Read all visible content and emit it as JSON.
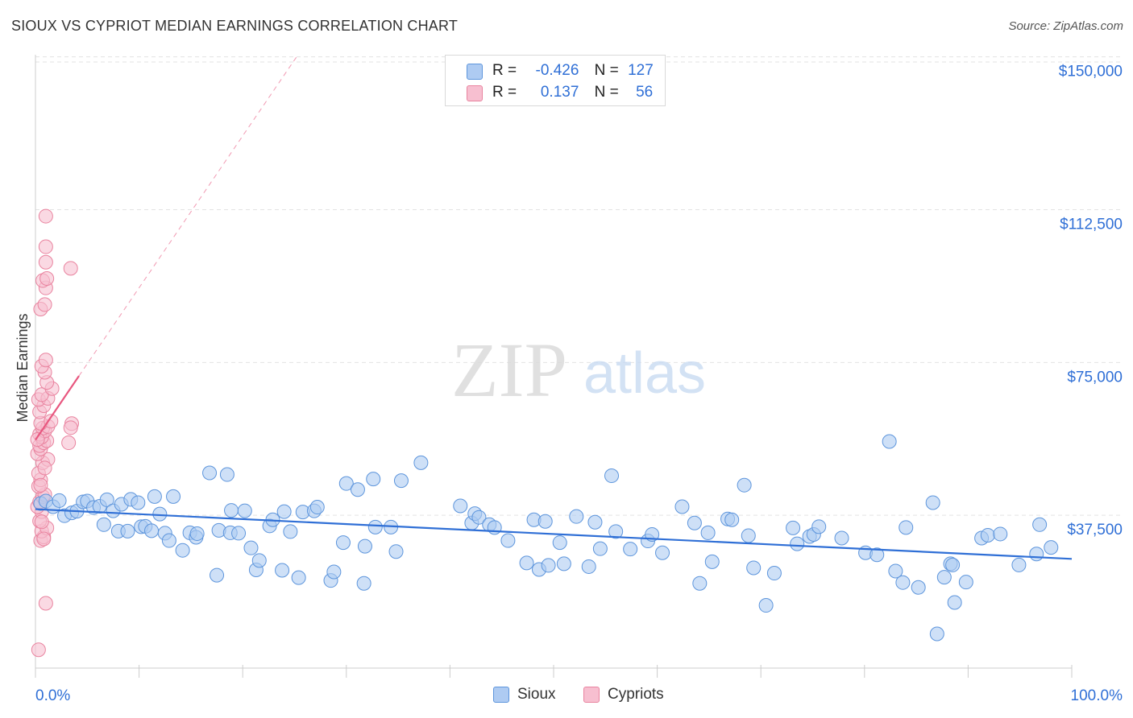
{
  "header": {
    "title": "SIOUX VS CYPRIOT MEDIAN EARNINGS CORRELATION CHART",
    "source": "Source: ZipAtlas.com"
  },
  "legend": {
    "rows": [
      {
        "r_label": "R =",
        "r_value": "-0.426",
        "n_label": "N =",
        "n_value": "127"
      },
      {
        "r_label": "R =",
        "r_value": "0.137",
        "n_label": "N =",
        "n_value": "56"
      }
    ]
  },
  "bottom_legend": [
    "Sioux",
    "Cypriots"
  ],
  "watermark": {
    "zip": "ZIP",
    "atlas": "atlas"
  },
  "colors": {
    "sioux_fill": "#aecbf2",
    "sioux_stroke": "#5d95dc",
    "sioux_line": "#2f6fd6",
    "cypriot_fill": "#f7bfd0",
    "cypriot_stroke": "#e9839f",
    "cypriot_line": "#e8577f",
    "axis_label": "#2f6fd6",
    "grid": "#e3e3e3"
  },
  "chart_data": {
    "type": "scatter",
    "title": "SIOUX VS CYPRIOT MEDIAN EARNINGS CORRELATION CHART",
    "xlabel": "",
    "ylabel": "Median Earnings",
    "xlim": [
      0,
      100
    ],
    "ylim": [
      0,
      160000
    ],
    "x_tick_labels": [
      "0.0%",
      "100.0%"
    ],
    "y_ticks": [
      37500,
      75000,
      112500,
      150000
    ],
    "y_tick_labels": [
      "$37,500",
      "$75,000",
      "$112,500",
      "$150,000"
    ],
    "grid": true,
    "legend_position": "top-center",
    "series": [
      {
        "name": "Sioux",
        "r": -0.426,
        "n": 127,
        "trend": {
          "x": [
            0,
            100
          ],
          "y": [
            39000,
            26800
          ]
        },
        "points": [
          [
            0.5,
            40400
          ],
          [
            1.0,
            41000
          ],
          [
            1.7,
            39600
          ],
          [
            2.3,
            41100
          ],
          [
            2.8,
            37400
          ],
          [
            3.5,
            38100
          ],
          [
            4.0,
            38500
          ],
          [
            4.6,
            40800
          ],
          [
            5.0,
            41000
          ],
          [
            5.6,
            39400
          ],
          [
            6.2,
            39700
          ],
          [
            6.6,
            35200
          ],
          [
            6.9,
            41300
          ],
          [
            7.5,
            38600
          ],
          [
            8.0,
            33600
          ],
          [
            8.3,
            40200
          ],
          [
            8.9,
            33600
          ],
          [
            9.2,
            41400
          ],
          [
            9.9,
            40600
          ],
          [
            10.2,
            34700
          ],
          [
            10.6,
            34800
          ],
          [
            11.2,
            33700
          ],
          [
            11.5,
            42100
          ],
          [
            12.0,
            37800
          ],
          [
            12.5,
            33100
          ],
          [
            12.9,
            31300
          ],
          [
            13.3,
            42100
          ],
          [
            14.2,
            28900
          ],
          [
            14.9,
            33200
          ],
          [
            15.5,
            32100
          ],
          [
            15.6,
            33000
          ],
          [
            16.8,
            47900
          ],
          [
            17.5,
            22800
          ],
          [
            17.7,
            33800
          ],
          [
            18.5,
            47500
          ],
          [
            18.8,
            33200
          ],
          [
            18.9,
            38700
          ],
          [
            19.6,
            33100
          ],
          [
            20.2,
            38600
          ],
          [
            20.8,
            29500
          ],
          [
            21.3,
            24100
          ],
          [
            21.6,
            26400
          ],
          [
            22.6,
            34900
          ],
          [
            22.9,
            36400
          ],
          [
            23.8,
            24000
          ],
          [
            24.0,
            38400
          ],
          [
            24.6,
            33500
          ],
          [
            25.4,
            22200
          ],
          [
            25.8,
            38300
          ],
          [
            26.9,
            38600
          ],
          [
            27.2,
            39500
          ],
          [
            28.5,
            21500
          ],
          [
            28.8,
            23600
          ],
          [
            29.7,
            30800
          ],
          [
            30.0,
            45300
          ],
          [
            31.1,
            43800
          ],
          [
            31.7,
            20800
          ],
          [
            31.8,
            29900
          ],
          [
            32.6,
            46400
          ],
          [
            32.8,
            34600
          ],
          [
            34.3,
            34600
          ],
          [
            34.8,
            28600
          ],
          [
            35.3,
            46000
          ],
          [
            37.2,
            50400
          ],
          [
            41.0,
            39800
          ],
          [
            42.1,
            35600
          ],
          [
            42.4,
            37900
          ],
          [
            42.8,
            37000
          ],
          [
            43.8,
            35200
          ],
          [
            44.3,
            34500
          ],
          [
            45.6,
            31300
          ],
          [
            47.4,
            25800
          ],
          [
            48.1,
            36400
          ],
          [
            48.6,
            24200
          ],
          [
            49.2,
            36000
          ],
          [
            49.5,
            25200
          ],
          [
            50.6,
            30800
          ],
          [
            51.0,
            25600
          ],
          [
            52.2,
            37200
          ],
          [
            53.4,
            24900
          ],
          [
            54.0,
            35800
          ],
          [
            54.5,
            29300
          ],
          [
            55.6,
            47200
          ],
          [
            56.0,
            33500
          ],
          [
            57.4,
            29200
          ],
          [
            59.1,
            31200
          ],
          [
            59.5,
            32800
          ],
          [
            60.5,
            28300
          ],
          [
            62.4,
            39600
          ],
          [
            63.6,
            35600
          ],
          [
            64.1,
            20800
          ],
          [
            64.9,
            33200
          ],
          [
            65.3,
            26100
          ],
          [
            66.8,
            36600
          ],
          [
            67.2,
            36400
          ],
          [
            68.4,
            44900
          ],
          [
            68.8,
            32500
          ],
          [
            69.3,
            24600
          ],
          [
            70.5,
            15400
          ],
          [
            71.3,
            23300
          ],
          [
            73.1,
            34400
          ],
          [
            73.5,
            30500
          ],
          [
            74.7,
            32300
          ],
          [
            75.1,
            32800
          ],
          [
            75.6,
            34700
          ],
          [
            77.8,
            31900
          ],
          [
            80.1,
            28300
          ],
          [
            81.2,
            27800
          ],
          [
            82.4,
            55600
          ],
          [
            83.0,
            23800
          ],
          [
            83.7,
            21000
          ],
          [
            84.0,
            34500
          ],
          [
            85.2,
            19800
          ],
          [
            86.6,
            40600
          ],
          [
            87.0,
            8400
          ],
          [
            87.7,
            22300
          ],
          [
            88.3,
            25600
          ],
          [
            88.5,
            25300
          ],
          [
            88.7,
            16100
          ],
          [
            89.8,
            21100
          ],
          [
            91.3,
            31900
          ],
          [
            91.9,
            32600
          ],
          [
            93.1,
            32900
          ],
          [
            94.9,
            25300
          ],
          [
            96.6,
            28000
          ],
          [
            96.9,
            35200
          ],
          [
            98.0,
            29600
          ]
        ]
      },
      {
        "name": "Cypriots",
        "r": 0.137,
        "n": 56,
        "trend": {
          "x": [
            0,
            4.2
          ],
          "y": [
            56000,
            71700
          ]
        },
        "trend_dashed": {
          "x": [
            4.2,
            25.2
          ],
          "y": [
            71700,
            150000
          ]
        },
        "points": [
          [
            0.3,
            4500
          ],
          [
            1.0,
            15900
          ],
          [
            0.5,
            31300
          ],
          [
            0.8,
            32200
          ],
          [
            0.6,
            33600
          ],
          [
            1.1,
            34400
          ],
          [
            0.4,
            36100
          ],
          [
            0.6,
            38400
          ],
          [
            0.2,
            39600
          ],
          [
            0.4,
            40800
          ],
          [
            0.7,
            42100
          ],
          [
            0.9,
            42600
          ],
          [
            0.3,
            44600
          ],
          [
            0.5,
            46200
          ],
          [
            0.3,
            47800
          ],
          [
            0.7,
            50400
          ],
          [
            1.2,
            51200
          ],
          [
            0.2,
            52600
          ],
          [
            0.5,
            53800
          ],
          [
            0.4,
            54600
          ],
          [
            0.8,
            55300
          ],
          [
            1.1,
            55800
          ],
          [
            0.6,
            56700
          ],
          [
            0.4,
            57400
          ],
          [
            0.9,
            58200
          ],
          [
            0.7,
            58900
          ],
          [
            1.2,
            59300
          ],
          [
            0.5,
            60100
          ],
          [
            1.5,
            60600
          ],
          [
            3.5,
            60000
          ],
          [
            3.4,
            59000
          ],
          [
            3.2,
            55300
          ],
          [
            0.4,
            62900
          ],
          [
            0.8,
            64400
          ],
          [
            0.3,
            65900
          ],
          [
            1.2,
            66200
          ],
          [
            0.6,
            67100
          ],
          [
            1.6,
            68600
          ],
          [
            1.1,
            70100
          ],
          [
            0.9,
            72600
          ],
          [
            0.6,
            74100
          ],
          [
            1.0,
            75600
          ],
          [
            0.5,
            88100
          ],
          [
            0.9,
            89200
          ],
          [
            1.0,
            93300
          ],
          [
            0.7,
            95100
          ],
          [
            1.1,
            95600
          ],
          [
            3.4,
            98100
          ],
          [
            1.0,
            99600
          ],
          [
            1.0,
            103400
          ],
          [
            1.0,
            110900
          ],
          [
            0.6,
            35900
          ],
          [
            0.8,
            31700
          ],
          [
            0.5,
            44900
          ],
          [
            0.2,
            56100
          ],
          [
            0.9,
            49100
          ]
        ]
      }
    ]
  }
}
